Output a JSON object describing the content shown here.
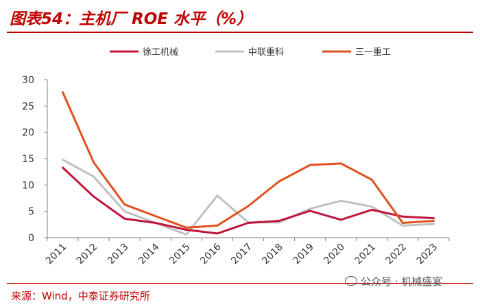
{
  "title": "图表54：主机厂 ROE 水平（%）",
  "source": "来源：Wind，中泰证券研究所",
  "watermark": "公众号 · 机械盛宴",
  "chart_data": {
    "type": "line",
    "title": "",
    "xlabel": "",
    "ylabel": "",
    "x": [
      "2011",
      "2012",
      "2013",
      "2014",
      "2015",
      "2016",
      "2017",
      "2018",
      "2019",
      "2020",
      "2021",
      "2022",
      "2023"
    ],
    "ylim": [
      0,
      30
    ],
    "yticks": [
      0,
      5,
      10,
      15,
      20,
      25,
      30
    ],
    "grid": false,
    "legend_position": "top",
    "series": [
      {
        "name": "徐工机械",
        "color": "#c0143c",
        "values": [
          13.3,
          7.8,
          3.6,
          2.8,
          1.5,
          0.8,
          2.8,
          3.2,
          5.1,
          3.4,
          5.3,
          4.0,
          3.7
        ]
      },
      {
        "name": "中联重科",
        "color": "#c0c0c0",
        "values": [
          14.8,
          11.6,
          5.0,
          2.8,
          0.6,
          8.0,
          2.9,
          2.9,
          5.5,
          7.0,
          5.9,
          2.3,
          2.6
        ]
      },
      {
        "name": "三一重工",
        "color": "#e0501e",
        "values": [
          27.6,
          14.3,
          6.3,
          4.1,
          1.9,
          2.3,
          6.0,
          10.7,
          13.8,
          14.1,
          11.0,
          2.8,
          3.2
        ]
      }
    ]
  }
}
